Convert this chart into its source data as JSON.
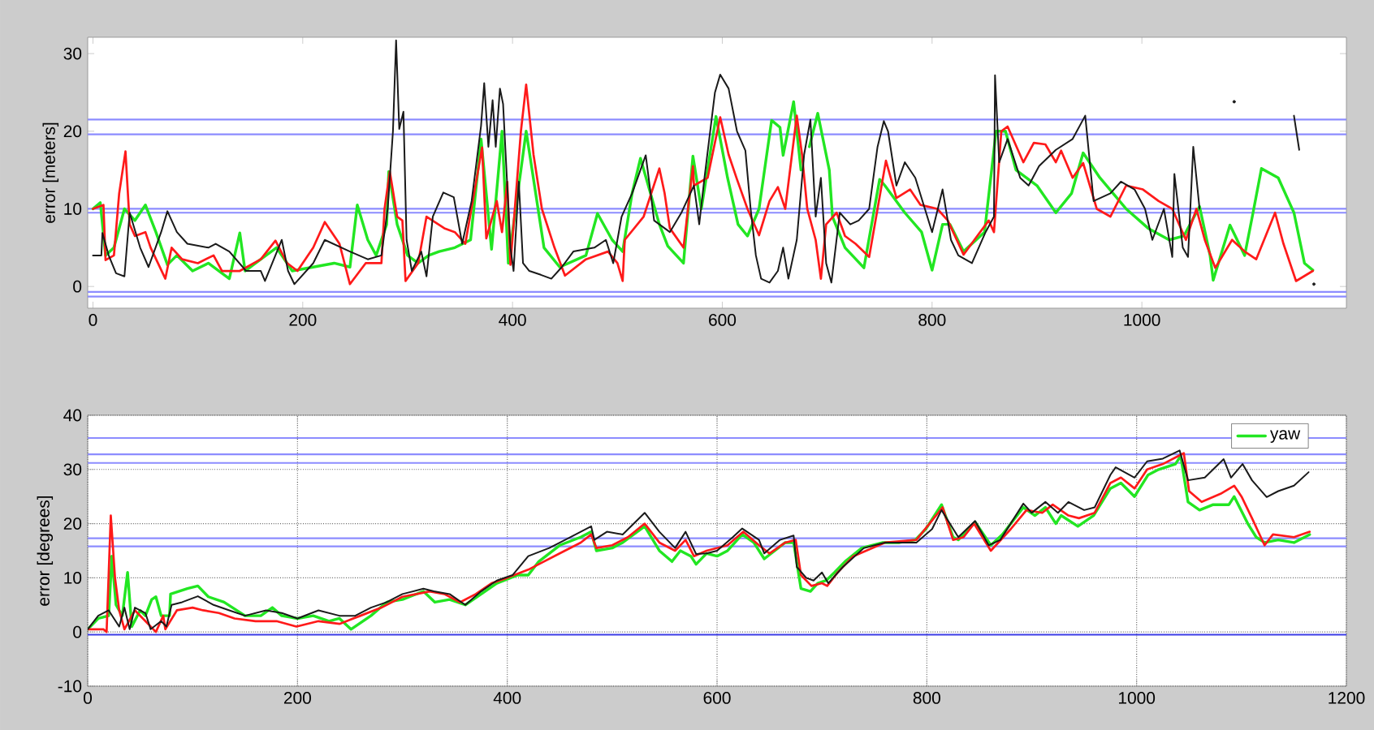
{
  "chart_data": [
    {
      "type": "line",
      "ylabel": "error [meters]",
      "xlim": [
        -5,
        1195
      ],
      "ylim": [
        -2.8,
        32.1
      ],
      "xticks": [
        0,
        200,
        400,
        600,
        800,
        1000
      ],
      "yticks": [
        0,
        10,
        20,
        30
      ],
      "grid": false,
      "legend": false,
      "ref_lines": [
        {
          "axis": "y",
          "value": 21.5,
          "color": "#8c8cff"
        },
        {
          "axis": "y",
          "value": 19.6,
          "color": "#8c8cff"
        },
        {
          "axis": "y",
          "value": 10.0,
          "color": "#8c8cff"
        },
        {
          "axis": "y",
          "value": 9.5,
          "color": "#8c8cff"
        },
        {
          "axis": "y",
          "value": -0.7,
          "color": "#8c8cff"
        },
        {
          "axis": "y",
          "value": -1.3,
          "color": "#8c8cff"
        }
      ],
      "series": [
        {
          "color": "#22e622",
          "x": [
            0,
            7,
            12,
            20,
            30,
            40,
            50,
            60,
            71,
            80,
            95,
            110,
            130,
            140,
            145,
            160,
            175,
            190,
            210,
            230,
            245,
            252,
            262,
            270,
            280,
            282,
            290,
            300,
            310,
            320,
            330,
            345,
            360,
            367,
            370,
            380,
            390,
            396,
            413,
            430,
            445,
            470,
            481,
            495,
            505,
            514,
            522,
            540,
            548,
            563,
            572,
            580,
            594,
            605,
            615,
            624,
            635,
            647,
            655,
            658,
            668,
            675,
            678,
            683,
            691,
            702,
            705,
            717,
            735,
            750,
            755,
            774,
            790,
            800,
            810,
            817,
            830,
            850,
            861,
            870,
            880,
            900,
            918,
            933,
            944,
            960,
            985,
            1006,
            1026,
            1040,
            1055,
            1065,
            1068,
            1084,
            1098,
            1106,
            1114,
            1130,
            1145,
            1155,
            1163
          ],
          "values": [
            10,
            10.8,
            4,
            5,
            10,
            8.5,
            10.5,
            7,
            2.8,
            4,
            2,
            3,
            1,
            6.9,
            2,
            3.5,
            5,
            2,
            2.5,
            3,
            2.5,
            10.5,
            6,
            4,
            8,
            14.8,
            8,
            4,
            3,
            4,
            4.5,
            5,
            6,
            15,
            19,
            4.8,
            20,
            3,
            20,
            5,
            2.5,
            4,
            9.4,
            6,
            4.5,
            12,
            16.5,
            8,
            5.2,
            3,
            16.8,
            10,
            21.9,
            14,
            8,
            6.5,
            10,
            21.4,
            20.5,
            16.9,
            23.8,
            15,
            null,
            18,
            22.3,
            15,
            9,
            5,
            2.4,
            13.8,
            13,
            9.5,
            7,
            2.1,
            8,
            8,
            4.5,
            7,
            20,
            20,
            15,
            13,
            9.5,
            12,
            17.2,
            14,
            10,
            7.5,
            6,
            6.5,
            10.3,
            4,
            0.8,
            7.9,
            4,
            9.5,
            15.2,
            14,
            9.5,
            3,
            2.1
          ]
        },
        {
          "color": "#ff1a1a",
          "x": [
            0,
            10,
            12,
            20,
            25,
            31,
            35,
            40,
            50,
            55,
            69,
            75,
            85,
            100,
            115,
            123,
            140,
            160,
            174,
            185,
            195,
            210,
            221,
            235,
            245,
            260,
            275,
            278,
            283,
            290,
            295,
            298,
            310,
            318,
            335,
            345,
            355,
            371,
            375,
            385,
            390,
            395,
            398,
            408,
            413,
            420,
            428,
            440,
            450,
            470,
            491,
            500,
            505,
            507,
            525,
            540,
            545,
            550,
            563,
            572,
            573,
            586,
            598,
            606,
            614,
            624,
            635,
            645,
            653,
            660,
            671,
            676,
            681,
            689,
            694,
            699,
            709,
            717,
            727,
            740,
            748,
            756,
            766,
            779,
            789,
            805,
            815,
            830,
            843,
            854,
            859,
            866,
            872,
            887,
            897,
            908,
            918,
            923,
            934,
            944,
            957,
            970,
            985,
            1001,
            1016,
            1029,
            1042,
            1052,
            1060,
            1070,
            1086,
            1098,
            1109,
            1127,
            1135,
            1147,
            1163
          ],
          "values": [
            10,
            10.5,
            3.4,
            4,
            12,
            17.4,
            8,
            6.5,
            7,
            5,
            1,
            5,
            3.5,
            3,
            4,
            2,
            2,
            3.5,
            5.9,
            3,
            2,
            5,
            8.3,
            5.5,
            0.3,
            3,
            3,
            10,
            14.8,
            9,
            8.5,
            0.7,
            3,
            9,
            7.5,
            7,
            5.5,
            17.9,
            6.2,
            11,
            7,
            13.5,
            2.8,
            20,
            26,
            17,
            10,
            5,
            1.4,
            3.5,
            4.5,
            3,
            0.7,
            6,
            9,
            15.2,
            12,
            7.5,
            5,
            15.5,
            13,
            14,
            21.8,
            17,
            13.8,
            10,
            6.6,
            11,
            12.8,
            10,
            22,
            17,
            10,
            6,
            1,
            8,
            9.5,
            6.5,
            5.5,
            3.8,
            10,
            16.2,
            11.4,
            12.5,
            10.5,
            10,
            8.5,
            4.1,
            6.5,
            8.5,
            7,
            20,
            20.6,
            16,
            18.5,
            18.3,
            16,
            17.5,
            14,
            15.9,
            10,
            9,
            13,
            12.5,
            11,
            10,
            6,
            10,
            6,
            2.4,
            6,
            4.5,
            3.5,
            9.5,
            5.5,
            0.7,
            2
          ]
        },
        {
          "color": "#1a1a1a",
          "x": [
            0,
            8,
            9,
            15,
            22,
            30,
            35,
            45,
            53,
            65,
            71,
            80,
            90,
            110,
            117,
            130,
            146,
            160,
            164,
            180,
            186,
            192,
            210,
            221,
            245,
            262,
            275,
            281,
            286,
            289,
            292,
            296,
            299,
            304,
            313,
            318,
            324,
            334,
            344,
            352,
            361,
            370,
            373,
            377,
            381,
            384,
            388,
            391,
            398,
            401,
            406,
            410,
            416,
            427,
            437,
            447,
            458,
            478,
            489,
            496,
            504,
            514,
            527,
            535,
            550,
            561,
            573,
            578,
            583,
            593,
            598,
            606,
            614,
            622,
            627,
            632,
            637,
            645,
            653,
            658,
            663,
            671,
            678,
            684,
            689,
            694,
            699,
            704,
            712,
            722,
            730,
            740,
            748,
            754,
            758,
            766,
            774,
            784,
            792,
            800,
            810,
            818,
            825,
            838,
            851,
            859,
            860,
            864,
            872,
            884,
            892,
            902,
            918,
            934,
            946,
            954,
            970,
            980,
            993,
            1003,
            1010,
            1021,
            1029,
            1031,
            1039,
            1044,
            1049,
            1055,
            1060,
            1088,
            1093,
            1135,
            1145,
            1150,
            1160,
            1164
          ],
          "values": [
            4,
            4,
            6.9,
            4,
            1.7,
            1.3,
            9.5,
            5,
            2.5,
            7,
            9.7,
            7,
            5.5,
            5,
            5.5,
            4.5,
            2,
            2,
            0.7,
            6,
            2,
            0.3,
            3,
            6,
            4.5,
            3.5,
            4,
            10,
            20,
            31.7,
            20.3,
            22.5,
            6,
            2,
            4.5,
            1.3,
            9,
            12.1,
            11.5,
            5.5,
            11,
            20.7,
            26.2,
            18,
            24,
            18,
            25.5,
            23.5,
            5,
            2,
            13.5,
            3,
            2,
            1.5,
            1,
            2.5,
            4.5,
            5,
            6,
            3,
            9,
            12,
            16.9,
            8.5,
            7,
            9.5,
            13,
            8,
            14,
            25,
            27.3,
            25.5,
            20,
            17.5,
            10,
            4,
            1,
            0.5,
            2,
            5,
            1,
            6,
            17,
            21.5,
            9,
            14,
            3,
            0.5,
            9.5,
            8,
            8.5,
            10,
            18,
            21.3,
            20,
            13,
            16,
            14,
            10.5,
            7,
            12.5,
            6,
            4,
            3,
            7,
            9,
            27.2,
            16,
            19,
            14,
            13,
            15.5,
            17.6,
            19,
            22,
            11,
            12,
            13.5,
            12.5,
            10,
            6,
            10,
            3.8,
            14.5,
            5,
            3.8,
            18,
            10,
            null,
            23.8,
            null,
            null,
            22,
            17.6,
            null,
            0.3
          ]
        }
      ]
    },
    {
      "type": "line",
      "ylabel": "error [degrees]",
      "xlim": [
        0,
        1200
      ],
      "ylim": [
        -10,
        40
      ],
      "xticks": [
        0,
        200,
        400,
        600,
        800,
        1000,
        1200
      ],
      "yticks": [
        -10,
        0,
        10,
        20,
        30,
        40
      ],
      "grid": true,
      "legend": "top right",
      "ref_lines": [
        {
          "axis": "y",
          "value": 35.8,
          "color": "#8c8cff"
        },
        {
          "axis": "y",
          "value": 32.8,
          "color": "#8c8cff"
        },
        {
          "axis": "y",
          "value": 31.2,
          "color": "#8c8cff"
        },
        {
          "axis": "y",
          "value": 17.3,
          "color": "#8c8cff"
        },
        {
          "axis": "y",
          "value": 15.8,
          "color": "#8c8cff"
        },
        {
          "axis": "y",
          "value": -0.5,
          "color": "#3c3ce6"
        }
      ],
      "series": [
        {
          "name": "yaw",
          "color": "#22e622",
          "x": [
            0,
            10,
            20,
            23,
            27,
            33,
            38,
            42,
            50,
            55,
            61,
            65,
            70,
            78,
            79,
            95,
            105,
            115,
            130,
            150,
            165,
            176,
            185,
            200,
            215,
            230,
            240,
            251,
            270,
            285,
            300,
            320,
            331,
            345,
            360,
            375,
            390,
            410,
            420,
            430,
            450,
            470,
            480,
            485,
            500,
            510,
            531,
            545,
            557,
            565,
            575,
            580,
            590,
            600,
            610,
            624,
            635,
            645,
            665,
            673,
            680,
            689,
            696,
            704,
            712,
            722,
            738,
            758,
            774,
            789,
            799,
            814,
            825,
            830,
            846,
            861,
            872,
            892,
            903,
            913,
            923,
            928,
            944,
            959,
            975,
            985,
            998,
            1011,
            1021,
            1037,
            1042,
            1049,
            1060,
            1073,
            1088,
            1093,
            1106,
            1114,
            1122,
            1135,
            1150,
            1165
          ],
          "values": [
            0.5,
            2.5,
            3,
            14,
            5,
            3,
            11,
            1,
            4,
            3,
            6,
            6.5,
            3,
            3,
            7,
            8,
            8.5,
            6.5,
            5.5,
            3,
            3,
            4.5,
            3,
            2.5,
            3,
            2,
            2.5,
            0.5,
            3,
            5.5,
            6,
            7.5,
            5.5,
            6,
            5,
            7,
            9,
            10.5,
            10.5,
            13,
            16,
            17.5,
            18.5,
            15,
            15.5,
            16.5,
            19.5,
            15,
            13,
            15,
            14,
            12.5,
            14.5,
            14,
            15,
            18,
            16.5,
            13.5,
            16.5,
            16.5,
            8,
            7.5,
            9,
            9.5,
            11,
            13,
            15.5,
            16.5,
            16.5,
            17,
            19,
            23.5,
            17.5,
            17,
            20.3,
            16,
            18,
            23,
            21.5,
            23,
            20,
            21.5,
            19.5,
            21.5,
            26.5,
            27.5,
            25,
            29,
            30,
            31,
            32.5,
            24,
            22.5,
            23.5,
            23.5,
            25,
            20,
            17.5,
            16.5,
            17,
            16.5,
            18
          ]
        },
        {
          "color": "#ff1a1a",
          "x": [
            0,
            15,
            18,
            22,
            26,
            30,
            35,
            45,
            55,
            65,
            72,
            74,
            85,
            100,
            110,
            125,
            140,
            160,
            180,
            199,
            220,
            240,
            260,
            280,
            300,
            326,
            340,
            355,
            370,
            385,
            400,
            420,
            430,
            450,
            470,
            480,
            485,
            500,
            515,
            531,
            545,
            560,
            570,
            578,
            590,
            610,
            625,
            640,
            650,
            665,
            675,
            680,
            690,
            700,
            705,
            715,
            730,
            760,
            790,
            815,
            825,
            835,
            845,
            861,
            880,
            895,
            910,
            920,
            935,
            945,
            960,
            975,
            985,
            998,
            1010,
            1025,
            1040,
            1045,
            1050,
            1062,
            1080,
            1093,
            1100,
            1110,
            1122,
            1130,
            1150,
            1165
          ],
          "values": [
            0.5,
            0.5,
            0,
            21.5,
            10,
            4,
            0.5,
            4,
            2,
            0,
            3,
            0.5,
            4,
            4.5,
            4,
            3.5,
            2.5,
            2,
            2,
            1,
            2,
            1.5,
            3,
            4.5,
            6.5,
            7.5,
            7,
            5.5,
            7,
            9,
            10,
            11.5,
            12.5,
            14.5,
            16.5,
            18,
            15.5,
            16,
            17.5,
            20,
            16.5,
            15,
            17,
            14,
            15,
            16,
            18.5,
            16,
            14.5,
            16.5,
            17,
            10.5,
            8.5,
            9,
            8.5,
            11,
            14,
            16.5,
            17,
            23,
            17,
            17.5,
            20,
            15,
            19,
            22.5,
            22,
            23.5,
            21.5,
            21,
            22,
            27.5,
            28.5,
            26.5,
            30,
            31,
            32.5,
            33,
            26,
            24,
            25.5,
            27,
            25,
            21,
            16,
            18,
            17.5,
            18.5
          ]
        },
        {
          "color": "#1a1a1a",
          "x": [
            0,
            10,
            20,
            25,
            30,
            35,
            40,
            45,
            55,
            60,
            70,
            75,
            80,
            90,
            105,
            120,
            135,
            150,
            170,
            185,
            200,
            220,
            240,
            255,
            270,
            285,
            300,
            320,
            330,
            345,
            360,
            375,
            390,
            405,
            420,
            440,
            460,
            480,
            483,
            495,
            510,
            531,
            545,
            560,
            570,
            580,
            590,
            600,
            615,
            624,
            640,
            645,
            660,
            673,
            676,
            685,
            692,
            700,
            706,
            720,
            740,
            760,
            790,
            805,
            814,
            830,
            846,
            859,
            870,
            892,
            900,
            913,
            925,
            935,
            950,
            960,
            975,
            980,
            998,
            1010,
            1025,
            1041,
            1049,
            1065,
            1083,
            1090,
            1101,
            1110,
            1124,
            1135,
            1150,
            1164
          ],
          "values": [
            0.5,
            3,
            4,
            2.5,
            1,
            4.5,
            0.5,
            4.5,
            3.5,
            0.5,
            2,
            1,
            5,
            5.5,
            6.6,
            5,
            4,
            3,
            4,
            3.5,
            2.5,
            4,
            3,
            3,
            4.5,
            5.5,
            7,
            8,
            7.5,
            7,
            5,
            7.5,
            9.5,
            10.5,
            14,
            15.5,
            17.5,
            19.5,
            17,
            18.5,
            18,
            22,
            18.5,
            15.5,
            18.5,
            14.4,
            14.5,
            15,
            17.5,
            19.1,
            17,
            14.5,
            17,
            17.8,
            12,
            10,
            9.5,
            11,
            9,
            12,
            15.5,
            16.5,
            16.5,
            19,
            22.5,
            17.5,
            20.5,
            16,
            17,
            23.7,
            22,
            24,
            22,
            24,
            22.5,
            23,
            29,
            30.4,
            28.5,
            31.5,
            32,
            33.5,
            28,
            28.5,
            31.9,
            28.5,
            31,
            28,
            24.9,
            26,
            27,
            29.5
          ]
        }
      ]
    }
  ]
}
